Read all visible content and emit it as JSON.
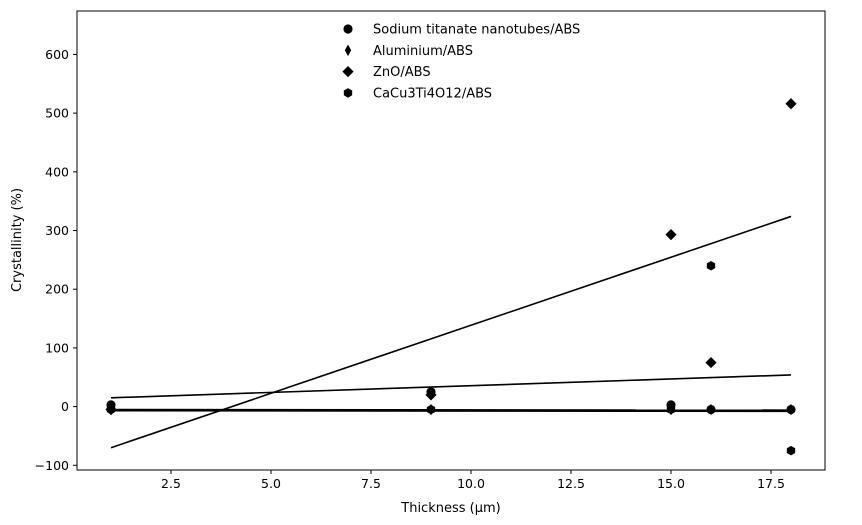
{
  "chart_data": {
    "type": "scatter",
    "xlabel": "Thickness (µm)",
    "ylabel": "Crystallinity (%)",
    "xlim": [
      0.15,
      18.85
    ],
    "ylim": [
      -108,
      674
    ],
    "x_ticks": [
      2.5,
      5.0,
      7.5,
      10.0,
      12.5,
      15.0,
      17.5
    ],
    "x_tick_labels": [
      "2.5",
      "5.0",
      "7.5",
      "10.0",
      "12.5",
      "15.0",
      "17.5"
    ],
    "y_ticks": [
      -100,
      0,
      100,
      200,
      300,
      400,
      500,
      600
    ],
    "y_tick_labels": [
      "−100",
      "0",
      "100",
      "200",
      "300",
      "400",
      "500",
      "600"
    ],
    "grid": false,
    "legend_position": "top-center",
    "series": [
      {
        "name": "Sodium titanate nanotubes/ABS",
        "marker": "circle",
        "color": "#000000",
        "x": [
          1,
          9,
          15,
          16,
          18
        ],
        "y": [
          3,
          25,
          3,
          -5,
          -5
        ],
        "trend": {
          "x": [
            1,
            18
          ],
          "y": [
            15,
            54
          ]
        }
      },
      {
        "name": "Aluminium/ABS",
        "marker": "thin-diamond",
        "color": "#000000",
        "x": [
          1,
          9,
          15,
          16,
          18
        ],
        "y": [
          -5,
          -5,
          -5,
          -5,
          -5
        ],
        "trend": {
          "x": [
            1,
            18
          ],
          "y": [
            -5,
            -6
          ]
        }
      },
      {
        "name": "ZnO/ABS",
        "marker": "diamond",
        "color": "#000000",
        "x": [
          1,
          9,
          15,
          16,
          18
        ],
        "y": [
          -5,
          20,
          293,
          75,
          516
        ],
        "trend": {
          "x": [
            1,
            18
          ],
          "y": [
            -70,
            324
          ]
        }
      },
      {
        "name": "CaCu3Ti4O12/ABS",
        "marker": "hexagon",
        "color": "#000000",
        "x": [
          1,
          9,
          15,
          16,
          18
        ],
        "y": [
          -5,
          -5,
          -5,
          240,
          -75
        ],
        "trend": {
          "x": [
            1,
            18
          ],
          "y": [
            -7,
            -8
          ]
        }
      }
    ]
  }
}
